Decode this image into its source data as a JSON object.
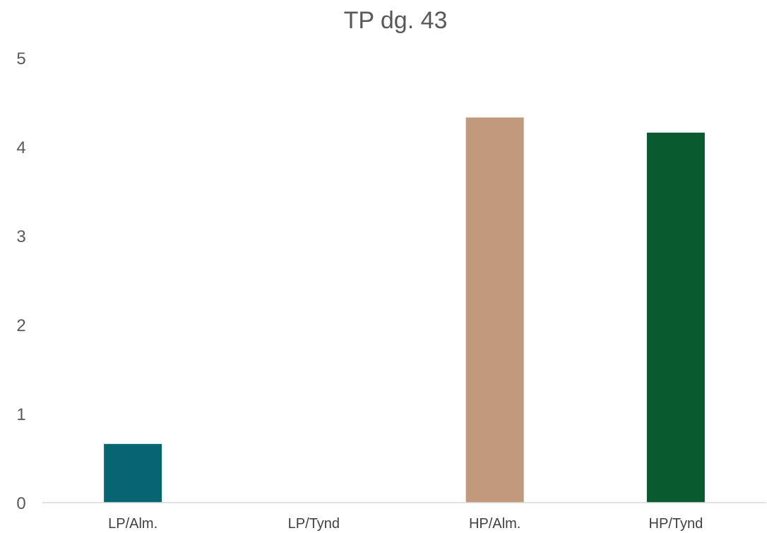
{
  "chart_data": {
    "type": "bar",
    "title": "TP dg. 43",
    "xlabel": "",
    "ylabel": "",
    "categories": [
      "LP/Alm.",
      "LP/Tynd",
      "HP/Alm.",
      "HP/Tynd"
    ],
    "values": [
      0.66,
      0,
      4.33,
      4.16
    ],
    "bar_colors": [
      "#076572",
      "#ffffff",
      "#c19a7e",
      "#0a5a2f"
    ],
    "ylim": [
      0,
      5
    ],
    "yticks": [
      "0",
      "1",
      "2",
      "3",
      "4",
      "5"
    ],
    "grid": false,
    "legend": "none"
  }
}
